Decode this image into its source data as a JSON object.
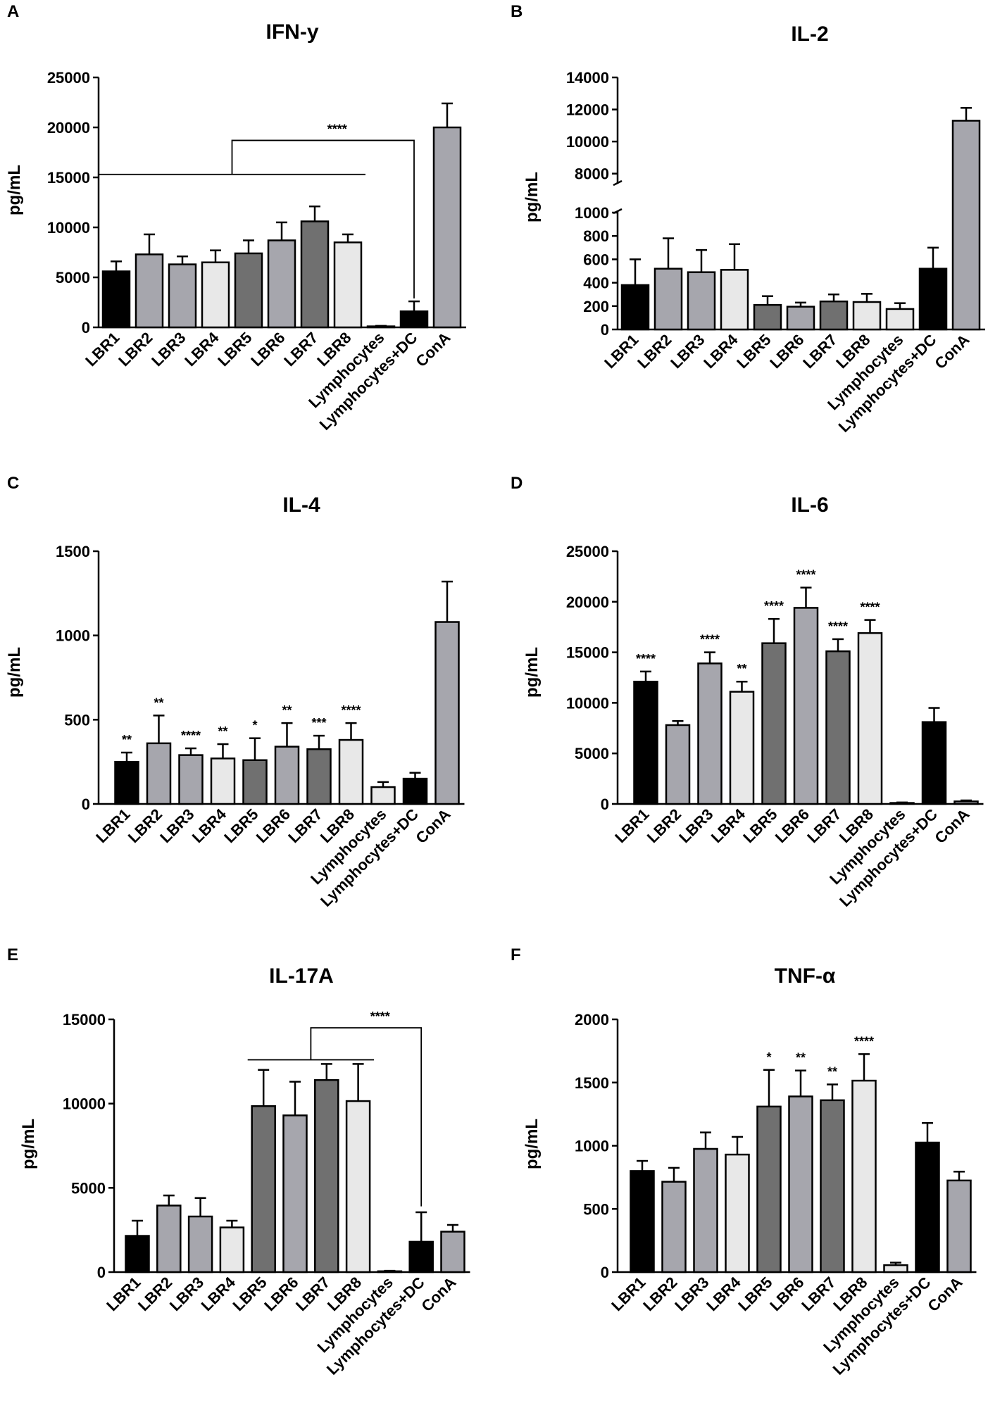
{
  "figure": {
    "colors": {
      "black": "#000000",
      "mid_gray": "#a6a6ad",
      "dark_gray": "#707070",
      "light_gray": "#e8e8e8"
    }
  },
  "chart_data": [
    {
      "panel_label": "A",
      "type": "bar",
      "title": "IFN-y",
      "ylabel": "pg/mL",
      "categories": [
        "LBR1",
        "LBR2",
        "LBR3",
        "LBR4",
        "LBR5",
        "LBR6",
        "LBR7",
        "LBR8",
        "Lymphocytes",
        "Lymphocytes+DC",
        "ConA"
      ],
      "values": [
        5600,
        7300,
        6300,
        6500,
        7400,
        8700,
        10600,
        8500,
        100,
        1600,
        20000
      ],
      "errors": [
        1000,
        2000,
        800,
        1200,
        1300,
        1800,
        1500,
        800,
        50,
        1000,
        2400
      ],
      "fills": [
        "black",
        "mid_gray",
        "mid_gray",
        "light_gray",
        "dark_gray",
        "mid_gray",
        "dark_gray",
        "light_gray",
        "light_gray",
        "black",
        "mid_gray"
      ],
      "ylim": [
        0,
        25000
      ],
      "yticks": [
        {
          "value": 0,
          "label": "0"
        },
        {
          "value": 5000,
          "label": "5000"
        },
        {
          "value": 10000,
          "label": "10000"
        },
        {
          "value": 15000,
          "label": "15000"
        },
        {
          "value": 20000,
          "label": "20000"
        },
        {
          "value": 25000,
          "label": "25000"
        }
      ],
      "significance": [],
      "brackets": [
        {
          "from_index": 0,
          "to_index": 7,
          "y": 15300,
          "peak_y": 18700,
          "target_index": 9,
          "target_y": 2900,
          "label": "****"
        }
      ]
    },
    {
      "panel_label": "B",
      "type": "bar",
      "title": "IL-2",
      "ylabel": "pg/mL",
      "categories": [
        "LBR1",
        "LBR2",
        "LBR3",
        "LBR4",
        "LBR5",
        "LBR6",
        "LBR7",
        "LBR8",
        "Lymphocytes",
        "Lymphocytes+DC",
        "ConA"
      ],
      "values": [
        380,
        520,
        490,
        510,
        210,
        195,
        240,
        235,
        175,
        520,
        11300
      ],
      "errors": [
        220,
        260,
        190,
        220,
        75,
        35,
        60,
        70,
        50,
        180,
        800
      ],
      "fills": [
        "black",
        "mid_gray",
        "mid_gray",
        "light_gray",
        "dark_gray",
        "mid_gray",
        "dark_gray",
        "light_gray",
        "light_gray",
        "black",
        "mid_gray"
      ],
      "ylim": [
        0,
        14000
      ],
      "axis_break": {
        "lower_max": 1000,
        "upper_min": 7500
      },
      "yticks": [
        {
          "value": 0,
          "label": "0"
        },
        {
          "value": 200,
          "label": "200"
        },
        {
          "value": 400,
          "label": "400"
        },
        {
          "value": 600,
          "label": "600"
        },
        {
          "value": 800,
          "label": "800"
        },
        {
          "value": 1000,
          "label": "1000"
        },
        {
          "value": 8000,
          "label": "8000"
        },
        {
          "value": 10000,
          "label": "10000"
        },
        {
          "value": 12000,
          "label": "12000"
        },
        {
          "value": 14000,
          "label": "14000"
        }
      ],
      "significance": [],
      "brackets": []
    },
    {
      "panel_label": "C",
      "type": "bar",
      "title": "IL-4",
      "ylabel": "pg/mL",
      "categories": [
        "LBR1",
        "LBR2",
        "LBR3",
        "LBR4",
        "LBR5",
        "LBR6",
        "LBR7",
        "LBR8",
        "Lymphocytes",
        "Lymphocytes+DC",
        "ConA"
      ],
      "values": [
        250,
        360,
        290,
        270,
        260,
        340,
        325,
        380,
        100,
        150,
        1080
      ],
      "errors": [
        55,
        165,
        40,
        85,
        130,
        140,
        80,
        100,
        30,
        35,
        240
      ],
      "fills": [
        "black",
        "mid_gray",
        "mid_gray",
        "light_gray",
        "dark_gray",
        "mid_gray",
        "dark_gray",
        "light_gray",
        "light_gray",
        "black",
        "mid_gray"
      ],
      "ylim": [
        0,
        1500
      ],
      "yticks": [
        {
          "value": 0,
          "label": "0"
        },
        {
          "value": 500,
          "label": "500"
        },
        {
          "value": 1000,
          "label": "1000"
        },
        {
          "value": 1500,
          "label": "1500"
        }
      ],
      "significance": [
        "**",
        "**",
        "****",
        "**",
        "*",
        "**",
        "***",
        "****",
        "",
        "",
        ""
      ],
      "brackets": []
    },
    {
      "panel_label": "D",
      "type": "bar",
      "title": "IL-6",
      "ylabel": "pg/mL",
      "categories": [
        "LBR1",
        "LBR2",
        "LBR3",
        "LBR4",
        "LBR5",
        "LBR6",
        "LBR7",
        "LBR8",
        "Lymphocytes",
        "Lymphocytes+DC",
        "ConA"
      ],
      "values": [
        12100,
        7800,
        13900,
        11100,
        15900,
        19400,
        15100,
        16900,
        100,
        8100,
        250
      ],
      "errors": [
        1000,
        400,
        1100,
        1000,
        2400,
        2000,
        1200,
        1300,
        50,
        1400,
        100
      ],
      "fills": [
        "black",
        "mid_gray",
        "mid_gray",
        "light_gray",
        "dark_gray",
        "mid_gray",
        "dark_gray",
        "light_gray",
        "light_gray",
        "black",
        "mid_gray"
      ],
      "ylim": [
        0,
        25000
      ],
      "yticks": [
        {
          "value": 0,
          "label": "0"
        },
        {
          "value": 5000,
          "label": "5000"
        },
        {
          "value": 10000,
          "label": "10000"
        },
        {
          "value": 15000,
          "label": "15000"
        },
        {
          "value": 20000,
          "label": "20000"
        },
        {
          "value": 25000,
          "label": "25000"
        }
      ],
      "significance": [
        "****",
        "",
        "****",
        "**",
        "****",
        "****",
        "****",
        "****",
        "",
        "",
        ""
      ],
      "brackets": []
    },
    {
      "panel_label": "E",
      "type": "bar",
      "title": "IL-17A",
      "ylabel": "pg/mL",
      "categories": [
        "LBR1",
        "LBR2",
        "LBR3",
        "LBR4",
        "LBR5",
        "LBR6",
        "LBR7",
        "LBR8",
        "Lymphocytes",
        "Lymphocytes+DC",
        "ConA"
      ],
      "values": [
        2150,
        3950,
        3300,
        2650,
        9850,
        9300,
        11400,
        10150,
        50,
        1800,
        2400
      ],
      "errors": [
        900,
        600,
        1100,
        400,
        2150,
        2000,
        950,
        2200,
        30,
        1750,
        400
      ],
      "fills": [
        "black",
        "mid_gray",
        "mid_gray",
        "light_gray",
        "dark_gray",
        "mid_gray",
        "dark_gray",
        "light_gray",
        "light_gray",
        "black",
        "mid_gray"
      ],
      "ylim": [
        0,
        15000
      ],
      "yticks": [
        {
          "value": 0,
          "label": "0"
        },
        {
          "value": 5000,
          "label": "5000"
        },
        {
          "value": 10000,
          "label": "10000"
        },
        {
          "value": 15000,
          "label": "15000"
        }
      ],
      "significance": [],
      "brackets": [
        {
          "from_index": 4,
          "to_index": 7,
          "y": 12600,
          "peak_y": 14500,
          "target_index": 9,
          "target_y": 3900,
          "label": "****"
        }
      ]
    },
    {
      "panel_label": "F",
      "type": "bar",
      "title": "TNF-α",
      "ylabel": "pg/mL",
      "categories": [
        "LBR1",
        "LBR2",
        "LBR3",
        "LBR4",
        "LBR5",
        "LBR6",
        "LBR7",
        "LBR8",
        "Lymphocytes",
        "Lymphocytes+DC",
        "ConA"
      ],
      "values": [
        800,
        715,
        975,
        930,
        1310,
        1390,
        1360,
        1515,
        55,
        1025,
        725
      ],
      "errors": [
        80,
        110,
        130,
        140,
        290,
        205,
        125,
        210,
        20,
        155,
        70
      ],
      "fills": [
        "black",
        "mid_gray",
        "mid_gray",
        "light_gray",
        "dark_gray",
        "mid_gray",
        "dark_gray",
        "light_gray",
        "light_gray",
        "black",
        "mid_gray"
      ],
      "ylim": [
        0,
        2000
      ],
      "yticks": [
        {
          "value": 0,
          "label": "0"
        },
        {
          "value": 500,
          "label": "500"
        },
        {
          "value": 1000,
          "label": "1000"
        },
        {
          "value": 1500,
          "label": "1500"
        },
        {
          "value": 2000,
          "label": "2000"
        }
      ],
      "significance": [
        "",
        "",
        "",
        "",
        "*",
        "**",
        "**",
        "****",
        "",
        "",
        ""
      ],
      "brackets": []
    }
  ]
}
